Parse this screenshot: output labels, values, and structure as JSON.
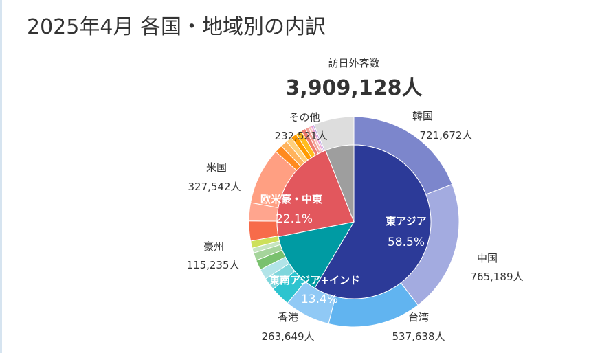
{
  "title": "2025年4月 各国・地域別の内訳",
  "colors": {
    "east_asia_inner": "#2c3a98",
    "sea_inner": "#009ba3",
    "western_inner": "#e2575d",
    "other_inner": "#9e9e9e"
  },
  "chart_data": {
    "type": "pie",
    "total_caption": "訪日外客数",
    "total_value": "3,909,128人",
    "inner": [
      {
        "name": "東アジア",
        "percent": "58.5%",
        "value": 58.5,
        "color": "#2c3a98"
      },
      {
        "name": "東南アジア+インド",
        "percent": "13.4%",
        "value": 13.4,
        "color": "#009ba3"
      },
      {
        "name": "欧米豪・中東",
        "percent": "22.1%",
        "value": 22.1,
        "color": "#e2575d"
      },
      {
        "name": "",
        "percent": "",
        "value": 6.0,
        "color": "#9e9e9e"
      }
    ],
    "outer": [
      {
        "name": "韓国",
        "label": "721,672人",
        "value": 721672,
        "color": "#7c86cc"
      },
      {
        "name": "中国",
        "label": "765,189人",
        "value": 765189,
        "color": "#a3abe0"
      },
      {
        "name": "台湾",
        "label": "537,638人",
        "value": 537638,
        "color": "#61b4f0"
      },
      {
        "name": "香港",
        "label": "263,649人",
        "value": 263649,
        "color": "#90c9f5"
      },
      {
        "name": "",
        "label": "",
        "value": 115000,
        "color": "#2ec4cf"
      },
      {
        "name": "",
        "label": "",
        "value": 72000,
        "color": "#7ed6dc"
      },
      {
        "name": "",
        "label": "",
        "value": 60000,
        "color": "#b1e4e8"
      },
      {
        "name": "",
        "label": "",
        "value": 58000,
        "color": "#79c16e"
      },
      {
        "name": "",
        "label": "",
        "value": 45000,
        "color": "#a5d49b"
      },
      {
        "name": "",
        "label": "",
        "value": 29000,
        "color": "#c6e5bf"
      },
      {
        "name": "",
        "label": "",
        "value": 41000,
        "color": "#cde05a"
      },
      {
        "name": "豪州",
        "label": "115,235人",
        "value": 115235,
        "color": "#f76b4a"
      },
      {
        "name": "",
        "label": "",
        "value": 105000,
        "color": "#ffa58e"
      },
      {
        "name": "米国",
        "label": "327,542人",
        "value": 327542,
        "color": "#ff9f82"
      },
      {
        "name": "",
        "label": "",
        "value": 45000,
        "color": "#ff8a1f"
      },
      {
        "name": "",
        "label": "",
        "value": 40000,
        "color": "#ffb35c"
      },
      {
        "name": "",
        "label": "",
        "value": 34000,
        "color": "#ffcf7a"
      },
      {
        "name": "",
        "label": "",
        "value": 34000,
        "color": "#ff9b00"
      },
      {
        "name": "",
        "label": "",
        "value": 35000,
        "color": "#ffbd1e"
      },
      {
        "name": "",
        "label": "",
        "value": 26000,
        "color": "#ef7b6f"
      },
      {
        "name": "",
        "label": "",
        "value": 19000,
        "color": "#f2a098"
      },
      {
        "name": "",
        "label": "",
        "value": 15000,
        "color": "#f6c0bb"
      },
      {
        "name": "",
        "label": "",
        "value": 12000,
        "color": "#ec9ad0"
      },
      {
        "name": "",
        "label": "",
        "value": 9000,
        "color": "#b6a3e0"
      },
      {
        "name": "その他",
        "label": "232,521人",
        "value": 232521,
        "color": "#dddddd"
      }
    ]
  }
}
